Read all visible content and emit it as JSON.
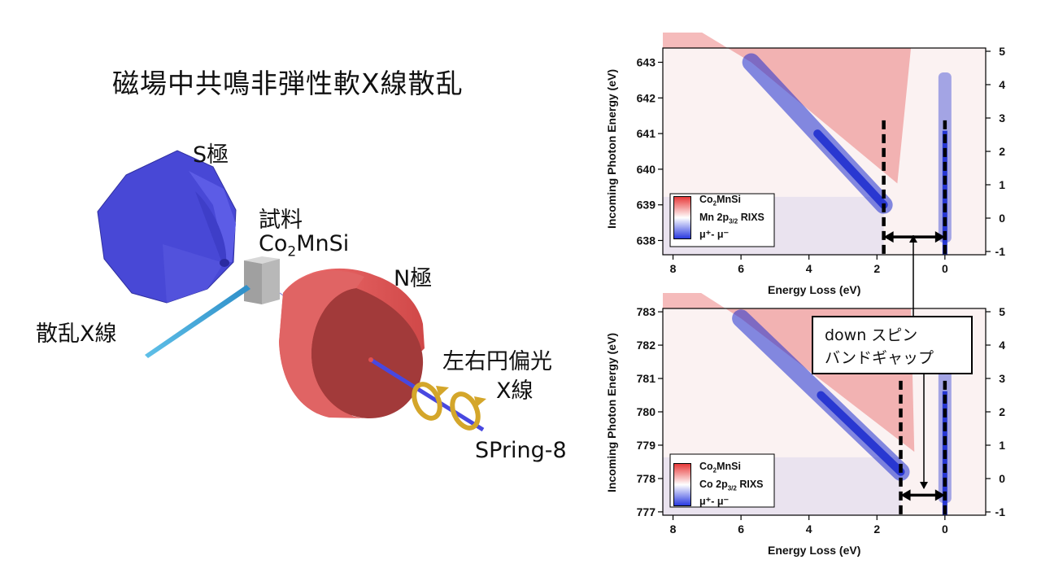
{
  "title": "磁場中共鳴非弾性軟X線散乱",
  "labels": {
    "s_pole": "S極",
    "n_pole": "N極",
    "sample_line1": "試料",
    "sample_formula": "Co",
    "sample_formula_sub": "2",
    "sample_formula_end": "MnSi",
    "scattered": "散乱X線",
    "polarized_line1": "左右円偏光",
    "polarized_line2": "X線",
    "source": "SPring-8"
  },
  "gap_box": {
    "line1": "down スピン",
    "line2": "バンドギャップ"
  },
  "colors": {
    "positive": "#e03030",
    "negative": "#2030d0",
    "magnet_s": "#4a4ad8",
    "magnet_n": "#d05050"
  },
  "chart_data": [
    {
      "type": "heatmap",
      "name_text": "Co₂MnSi Mn 2p3/2 RIXS μ⁺- μ⁻",
      "legend": {
        "line1_main": "Co",
        "line1_sub": "2",
        "line1_end": "MnSi",
        "line2_main": "Mn 2p",
        "line2_sub": "3/2",
        "line2_end": " RIXS",
        "line3": "μ⁺- μ⁻"
      },
      "xlabel": "Energy Loss (eV)",
      "ylabel": "Incoming Photon Energy (eV)",
      "xlim": [
        8.3,
        -1.2
      ],
      "ylim": [
        637.6,
        643.4
      ],
      "xticks": [
        8,
        6,
        4,
        2,
        0
      ],
      "yticks": [
        638,
        639,
        640,
        641,
        642,
        643
      ],
      "y2ticks": [
        -1,
        0,
        1,
        2,
        3,
        4,
        5
      ],
      "dashed_lines_x": [
        1.8,
        0
      ],
      "gap_arrow": {
        "from": 1.8,
        "to": 0,
        "y": 638.1
      },
      "diagonal_feature": {
        "from": [
          5.7,
          643.0
        ],
        "to": [
          1.8,
          639.0
        ]
      },
      "elastic_feature_x": 0
    },
    {
      "type": "heatmap",
      "name_text": "Co₂MnSi Co 2p3/2 RIXS μ⁺- μ⁻",
      "legend": {
        "line1_main": "Co",
        "line1_sub": "2",
        "line1_end": "MnSi",
        "line2_main": "Co 2p",
        "line2_sub": "3/2",
        "line2_end": " RIXS",
        "line3": "μ⁺- μ⁻"
      },
      "xlabel": "Energy Loss (eV)",
      "ylabel": "Incoming Photon Energy (eV)",
      "xlim": [
        8.3,
        -1.2
      ],
      "ylim": [
        776.9,
        783.1
      ],
      "xticks": [
        8,
        6,
        4,
        2,
        0
      ],
      "yticks": [
        777,
        778,
        779,
        780,
        781,
        782,
        783
      ],
      "y2ticks": [
        -1,
        0,
        1,
        2,
        3,
        4,
        5
      ],
      "dashed_lines_x": [
        1.3,
        0
      ],
      "gap_arrow": {
        "from": 1.3,
        "to": 0,
        "y": 777.5
      },
      "diagonal_feature": {
        "from": [
          6.0,
          782.8
        ],
        "to": [
          1.3,
          778.2
        ]
      },
      "elastic_feature_x": 0
    }
  ]
}
